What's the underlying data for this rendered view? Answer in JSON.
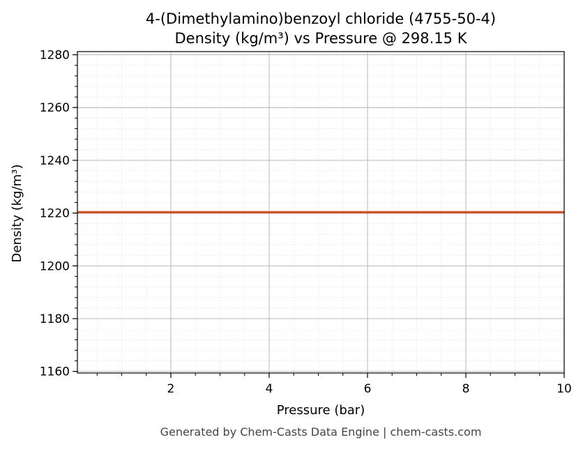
{
  "chart_data": {
    "type": "line",
    "title_line1": "4-(Dimethylamino)benzoyl chloride (4755-50-4)",
    "title_line2": "Density (kg/m³) vs Pressure @ 298.15 K",
    "xlabel": "Pressure (bar)",
    "ylabel": "Density (kg/m³)",
    "xlim": [
      0.1,
      10
    ],
    "ylim": [
      1159.4,
      1281.2
    ],
    "x_ticks": [
      2,
      4,
      6,
      8,
      10
    ],
    "y_ticks": [
      1160,
      1180,
      1200,
      1220,
      1240,
      1260,
      1280
    ],
    "x_minor_step": 0.5,
    "y_minor_step": 4,
    "grid": true,
    "series": [
      {
        "color": "#c8552b",
        "x": [
          0.1,
          1,
          2,
          3,
          4,
          5,
          6,
          7,
          8,
          9,
          10
        ],
        "y": [
          1220.3,
          1220.3,
          1220.3,
          1220.3,
          1220.3,
          1220.3,
          1220.3,
          1220.3,
          1220.3,
          1220.3,
          1220.3
        ]
      }
    ]
  },
  "footer": "Generated by Chem-Casts Data Engine | chem-casts.com"
}
